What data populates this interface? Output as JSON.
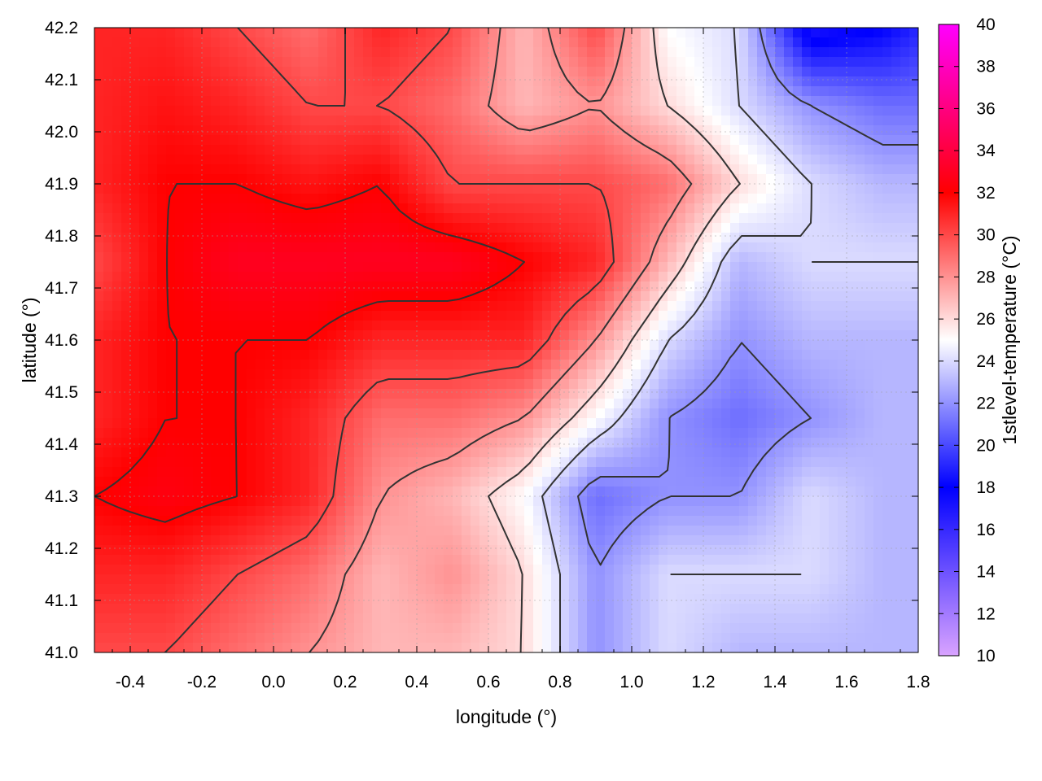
{
  "chart_data": {
    "type": "heatmap",
    "xlabel": "longitude (°)",
    "ylabel": "latitude (°)",
    "colorbar_label": "1stlevel-temperature (°C)",
    "xlim": [
      -0.5,
      1.8
    ],
    "ylim": [
      41.0,
      42.2
    ],
    "zlim": [
      10,
      40
    ],
    "x_ticks": [
      -0.4,
      -0.2,
      0.0,
      0.2,
      0.4,
      0.6,
      0.8,
      1.0,
      1.2,
      1.4,
      1.6,
      1.8
    ],
    "x_tick_labels": [
      "-0.4",
      "-0.2",
      "0.0",
      "0.2",
      "0.4",
      "0.6",
      "0.8",
      "1.0",
      "1.2",
      "1.4",
      "1.6",
      "1.8"
    ],
    "y_ticks": [
      41.0,
      41.1,
      41.2,
      41.3,
      41.4,
      41.5,
      41.6,
      41.7,
      41.8,
      41.9,
      42.0,
      42.1,
      42.2
    ],
    "y_tick_labels": [
      "41.0",
      "41.1",
      "41.2",
      "41.3",
      "41.4",
      "41.5",
      "41.6",
      "41.7",
      "41.8",
      "41.9",
      "42.0",
      "42.1",
      "42.2"
    ],
    "colorbar_ticks": [
      10,
      12,
      14,
      16,
      18,
      20,
      22,
      24,
      26,
      28,
      30,
      32,
      34,
      36,
      38,
      40
    ],
    "colorbar_tick_labels": [
      "10",
      "12",
      "14",
      "16",
      "18",
      "20",
      "22",
      "24",
      "26",
      "28",
      "30",
      "32",
      "34",
      "36",
      "38",
      "40"
    ],
    "colormap_stops": [
      {
        "value": 10,
        "color": "#d9a3ff"
      },
      {
        "value": 18,
        "color": "#0000ff"
      },
      {
        "value": 25,
        "color": "#ffffff"
      },
      {
        "value": 32,
        "color": "#ff0000"
      },
      {
        "value": 40,
        "color": "#ff00ff"
      }
    ],
    "grid": true,
    "contours": true,
    "contour_color": "#333333",
    "temperature_field": {
      "x": [
        -0.5,
        -0.3,
        -0.1,
        0.1,
        0.3,
        0.5,
        0.7,
        0.9,
        1.1,
        1.3,
        1.5,
        1.7,
        1.8
      ],
      "y": [
        42.2,
        42.05,
        41.9,
        41.75,
        41.6,
        41.45,
        41.3,
        41.15,
        41.0
      ],
      "z": [
        [
          31,
          31,
          30,
          29,
          31,
          30,
          27,
          30,
          25,
          24,
          17,
          18,
          19
        ],
        [
          31,
          31.5,
          31,
          30,
          30,
          29,
          27,
          28,
          26,
          24,
          22,
          21,
          21
        ],
        [
          31,
          32,
          32,
          31.5,
          32,
          30,
          30,
          30,
          29,
          26,
          24,
          23,
          23
        ],
        [
          30,
          32,
          33,
          33,
          33,
          33,
          32,
          31,
          27,
          23,
          24,
          24,
          24
        ],
        [
          31,
          32,
          32,
          32,
          31,
          31,
          31,
          28,
          24,
          22,
          23,
          23,
          23
        ],
        [
          31,
          32,
          32,
          31,
          29,
          29,
          28,
          25,
          22,
          21,
          22,
          23,
          23
        ],
        [
          32,
          32.5,
          32,
          31,
          28,
          27,
          25,
          21,
          22,
          22,
          24,
          23,
          23
        ],
        [
          31,
          31,
          30,
          29,
          27,
          28,
          26,
          22,
          24,
          24,
          24,
          23,
          23
        ],
        [
          30,
          30,
          29,
          28,
          27,
          27,
          26,
          22,
          24,
          23,
          23,
          23,
          23
        ]
      ]
    },
    "contour_levels": [
      22,
      24,
      26,
      28,
      30,
      32
    ]
  }
}
